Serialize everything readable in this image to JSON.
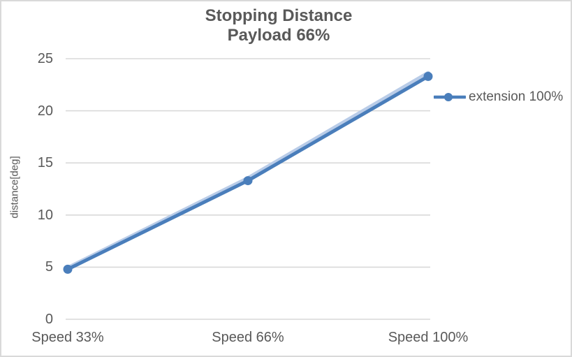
{
  "title": {
    "line1": "Stopping Distance",
    "line2": "Payload 66%"
  },
  "axes": {
    "y_title": "distance[deg]",
    "y_ticks": [
      0,
      5,
      10,
      15,
      20,
      25
    ],
    "x_categories": [
      "Speed 33%",
      "Speed 66%",
      "Speed 100%"
    ]
  },
  "legend": {
    "label": "extension 100%",
    "position": "right"
  },
  "colors": {
    "series": "#4a7ebb",
    "series_glow": "#b9cce8",
    "text": "#595959",
    "gridline": "#d9d9d9",
    "border": "#d9d9d9",
    "background": "#ffffff"
  },
  "chart_data": {
    "type": "line",
    "title": "Stopping Distance Payload 66%",
    "xlabel": "",
    "ylabel": "distance[deg]",
    "categories": [
      "Speed 33%",
      "Speed 66%",
      "Speed 100%"
    ],
    "series": [
      {
        "name": "extension 100%",
        "values": [
          4.8,
          13.3,
          23.3
        ],
        "color": "#4a7ebb",
        "marker": "circle"
      }
    ],
    "glow_line": {
      "note": "faint light-blue line overlapping just above the main series",
      "values": [
        4.9,
        13.5,
        23.6
      ],
      "color": "#b9cce8"
    },
    "ylim": [
      0,
      25
    ],
    "y_tick_step": 5,
    "grid": "horizontal-only",
    "legend_position": "right-middle"
  }
}
